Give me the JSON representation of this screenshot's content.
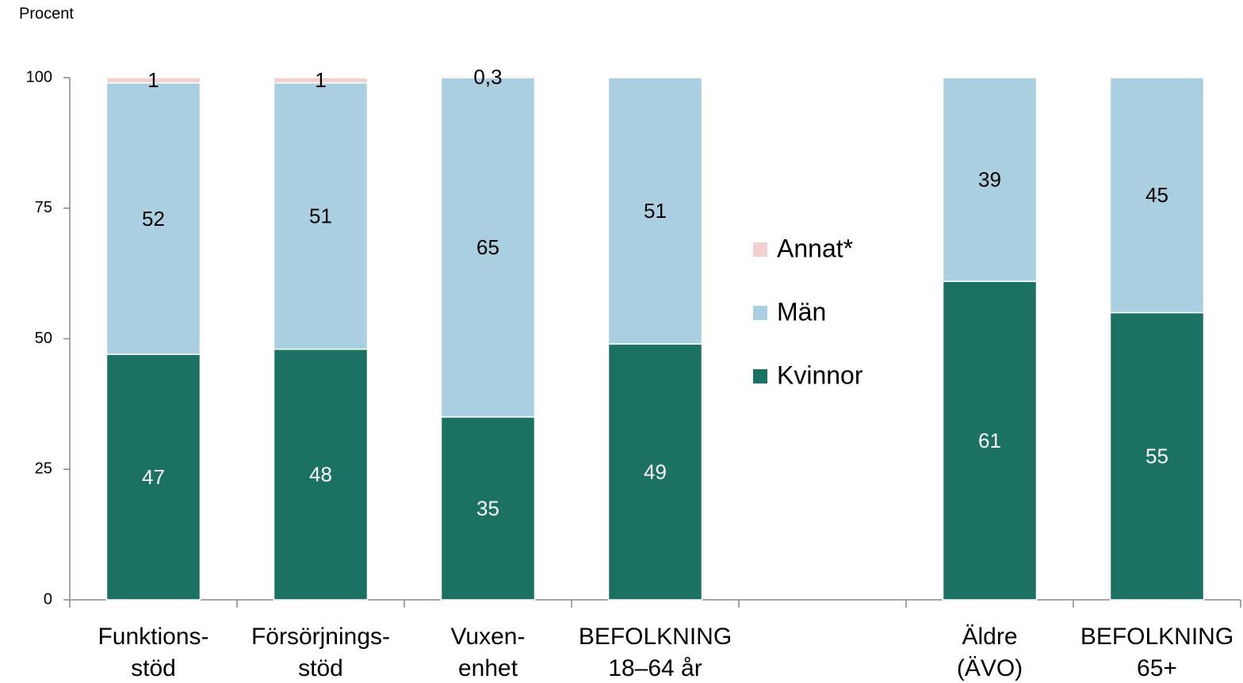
{
  "chart_data": {
    "type": "stacked_bar",
    "y_label": "Procent",
    "categories": [
      [
        "Funktions-",
        "stöd"
      ],
      [
        "Försörjnings-",
        "stöd"
      ],
      [
        "Vuxen-",
        "enhet"
      ],
      [
        "BEFOLKNING",
        "18–64 år"
      ],
      null,
      [
        "Äldre",
        "(ÄVO)"
      ],
      [
        "BEFOLKNING",
        "65+"
      ]
    ],
    "series": [
      {
        "name": "Kvinnor",
        "color": "#1b7262",
        "label_color": "#ffffff",
        "values": [
          47,
          48,
          35,
          49,
          null,
          61,
          55
        ]
      },
      {
        "name": "Män",
        "color": "#a9cfe0",
        "label_color": "#000000",
        "values": [
          52,
          51,
          65,
          51,
          null,
          39,
          45
        ]
      },
      {
        "name": "Annat*",
        "color": "#f2d0d0",
        "label_color": "#000000",
        "values": [
          1,
          1,
          0.3,
          null,
          null,
          null,
          null
        ],
        "value_labels": [
          "1",
          "1",
          "0,3",
          null,
          null,
          null,
          null
        ]
      }
    ],
    "ylim": [
      0,
      100
    ],
    "yticks": [
      0,
      25,
      50,
      75,
      100
    ],
    "grid": false,
    "legend": "center"
  }
}
